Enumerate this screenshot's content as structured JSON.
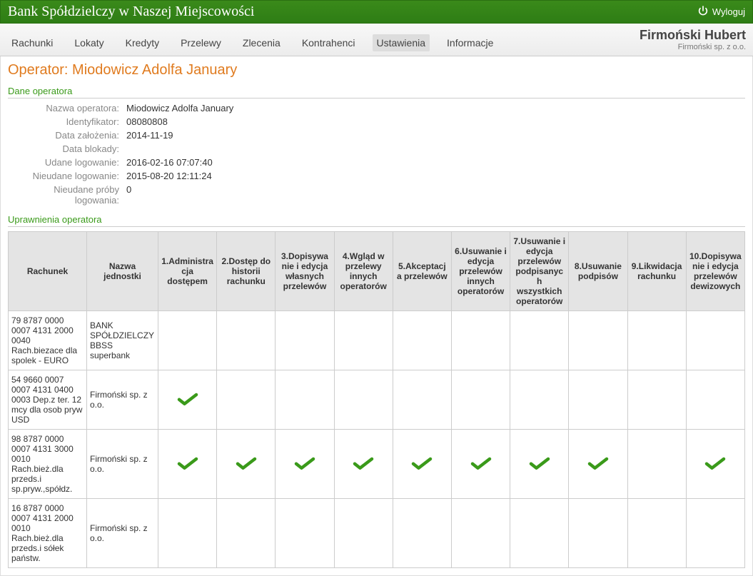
{
  "header": {
    "bank_name": "Bank Spółdzielczy w Naszej Miejscowości",
    "logout_label": "Wyloguj"
  },
  "client": {
    "name": "Firmoński Hubert",
    "company": "Firmoński sp. z o.o."
  },
  "nav": {
    "tabs": [
      "Rachunki",
      "Lokaty",
      "Kredyty",
      "Przelewy",
      "Zlecenia",
      "Kontrahenci",
      "Ustawienia",
      "Informacje"
    ],
    "active_index": 6
  },
  "page": {
    "title": "Operator: Miodowicz Adolfa January"
  },
  "sections": {
    "data_title": "Dane operatora",
    "perm_title": "Uprawnienia operatora"
  },
  "operator": {
    "fields": [
      {
        "label": "Nazwa operatora:",
        "value": "Miodowicz Adolfa January"
      },
      {
        "label": "Identyfikator:",
        "value": "08080808"
      },
      {
        "label": "Data założenia:",
        "value": "2014-11-19"
      },
      {
        "label": "Data blokady:",
        "value": ""
      },
      {
        "label": "Udane logowanie:",
        "value": "2016-02-16 07:07:40"
      },
      {
        "label": "Nieudane logowanie:",
        "value": "2015-08-20 12:11:24"
      },
      {
        "label": "Nieudane próby logowania:",
        "value": "0"
      }
    ]
  },
  "colors": {
    "check": "#3a9a1a"
  },
  "permissions": {
    "columns": [
      "Rachunek",
      "Nazwa jednostki",
      "1.Administracja dostępem",
      "2.Dostęp do historii rachunku",
      "3.Dopisywanie i edycja własnych przelewów",
      "4.Wgląd w przelewy innych operatorów",
      "5.Akceptacja przelewów",
      "6.Usuwanie i edycja przelewów innych operatorów",
      "7.Usuwanie i edycja przelewów podpisanych wszystkich operatorów",
      "8.Usuwanie podpisów",
      "9.Likwidacja rachunku",
      "10.Dopisywanie i edycja przelewów dewizowych"
    ],
    "rows": [
      {
        "account": "79 8787 0000 0007 4131 2000 0040 Rach.biezace dla spolek - EURO",
        "unit": "BANK SPÓŁDZIELCZY BBSS superbank",
        "perms": [
          false,
          false,
          false,
          false,
          false,
          false,
          false,
          false,
          false,
          false
        ]
      },
      {
        "account": "54 9660 0007 0007 4131 0400 0003 Dep.z ter. 12 mcy dla osob pryw USD",
        "unit": "Firmoński sp. z o.o.",
        "perms": [
          true,
          false,
          false,
          false,
          false,
          false,
          false,
          false,
          false,
          false
        ]
      },
      {
        "account": "98 8787 0000 0007 4131 3000 0010 Rach.bież.dla przeds.i sp.pryw.,spółdz.",
        "unit": "Firmoński sp. z o.o.",
        "perms": [
          true,
          true,
          true,
          true,
          true,
          true,
          true,
          true,
          false,
          true
        ]
      },
      {
        "account": "16 8787 0000 0007 4131 2000 0010 Rach.bież.dla przeds.i sółek państw.",
        "unit": "Firmoński sp. z o.o.",
        "perms": [
          false,
          false,
          false,
          false,
          false,
          false,
          false,
          false,
          false,
          false
        ]
      }
    ]
  }
}
